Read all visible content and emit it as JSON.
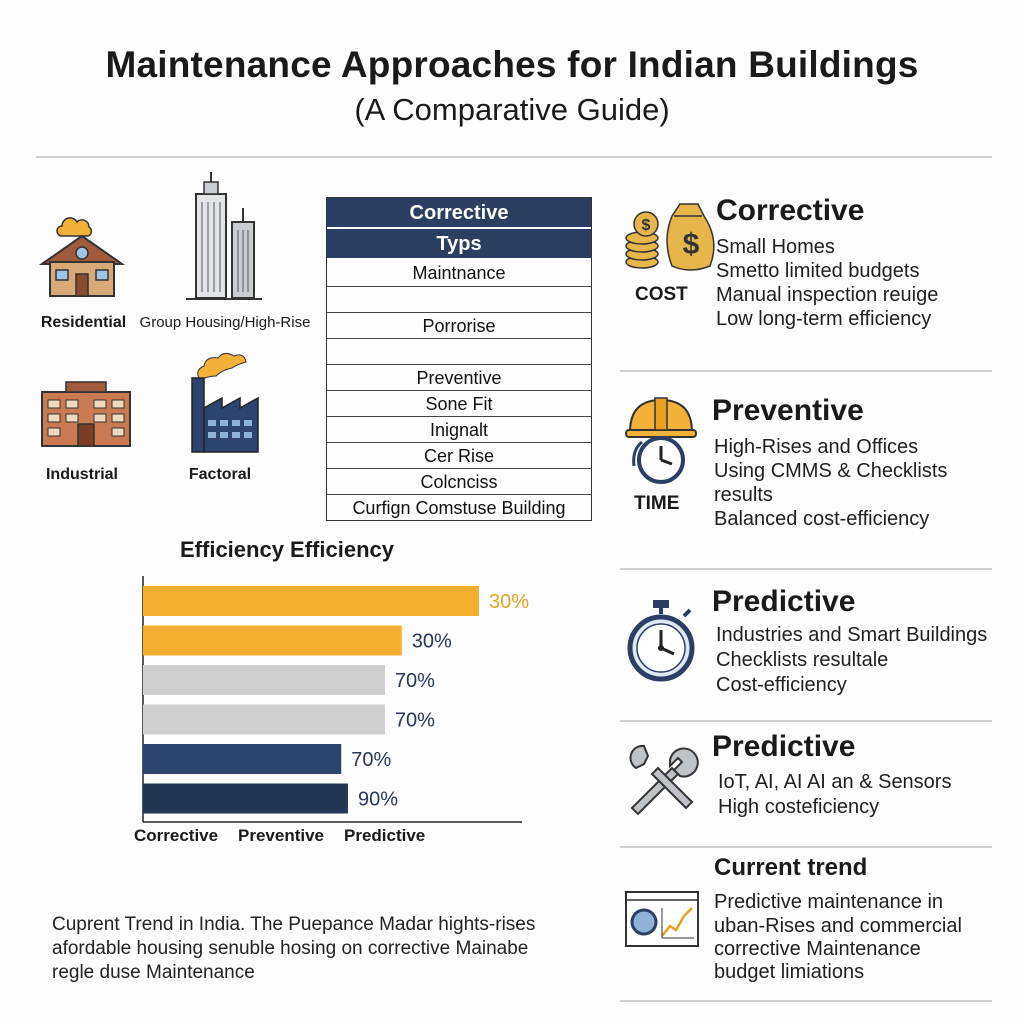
{
  "header": {
    "title": "Maintenance Approaches for Indian Buildings",
    "subtitle": "(A Comparative Guide)"
  },
  "building_types": [
    {
      "label": "Residential",
      "icon": "house-icon"
    },
    {
      "label": "Group Housing/High-Rise",
      "icon": "skyscraper-icon"
    },
    {
      "label": "Industrial",
      "icon": "industrial-building-icon"
    },
    {
      "label": "Factoral",
      "icon": "factory-icon"
    }
  ],
  "type_table": {
    "headers": [
      "Corrective",
      "Typs"
    ],
    "rows": [
      "Maintnance",
      "",
      "Porrorise",
      "",
      "Preventive",
      "Sone Fit",
      "Inignalt",
      "Cer Rise",
      "Colcnciss",
      "Curfign Comstuse Building"
    ]
  },
  "chart_data": {
    "type": "bar",
    "orientation": "horizontal",
    "title": "Efficiency Efficiency",
    "categories": [
      "Corrective",
      "Preventive",
      "Predictive"
    ],
    "bars": [
      {
        "value": 30,
        "label": "30%",
        "color": "#f2ae2e",
        "label_color": "#e3a425"
      },
      {
        "value": 30,
        "label": "30%",
        "color": "#f2ae2e",
        "label_color": "#27365a"
      },
      {
        "value": 70,
        "label": "70%",
        "color": "#cfcfcf",
        "label_color": "#27365a"
      },
      {
        "value": 70,
        "label": "70%",
        "color": "#cfcfcf",
        "label_color": "#27365a"
      },
      {
        "value": 70,
        "label": "70%",
        "color": "#2e4470",
        "label_color": "#27365a"
      },
      {
        "value": 90,
        "label": "90%",
        "color": "#243656",
        "label_color": "#27365a"
      }
    ],
    "bar_ratios": [
      1.0,
      0.77,
      0.72,
      0.72,
      0.59,
      0.61
    ],
    "xlabel": "",
    "ylabel": "",
    "grid": false,
    "legend": "none"
  },
  "footnote": {
    "lines": [
      "Cuprent Trend in India. The Puepance Madar hights-rises",
      "afordable housing senuble hosing on corrective Mainabe",
      "regle duse Maintenance"
    ]
  },
  "cards": [
    {
      "title": "Corrective",
      "side_label": "COST",
      "icon": "money-bag-icon",
      "lines": [
        "Small Homes",
        "Smetto limited budgets",
        "Manual inspection reuige",
        "Low long-term efficiency"
      ]
    },
    {
      "title": "Preventive",
      "side_label": "TIME",
      "icon": "hardhat-clock-icon",
      "lines": [
        "High-Rises and Offices",
        "Using CMMS & Checklists",
        "results",
        "Balanced cost-efficiency"
      ]
    },
    {
      "title": "Predictive",
      "side_label": "",
      "icon": "stopwatch-icon",
      "lines": [
        "Industries and Smart Buildings",
        "Checklists resultale",
        "Cost-efficiency"
      ]
    },
    {
      "title": "Predictive",
      "side_label": "",
      "icon": "wrench-tools-icon",
      "lines": [
        "IoT, AI, AI AI an & Sensors",
        "High costeficiency"
      ]
    },
    {
      "title": "Current trend",
      "side_label": "",
      "icon": "dashboard-chart-icon",
      "lines": [
        "Predictive maintenance in",
        "uban-Rises and commercial",
        "corrective Maintenance",
        "budget limiations"
      ]
    }
  ],
  "colors": {
    "navy": "#2c3e61",
    "gold": "#f2ae2e",
    "gray": "#cfcfcf"
  }
}
